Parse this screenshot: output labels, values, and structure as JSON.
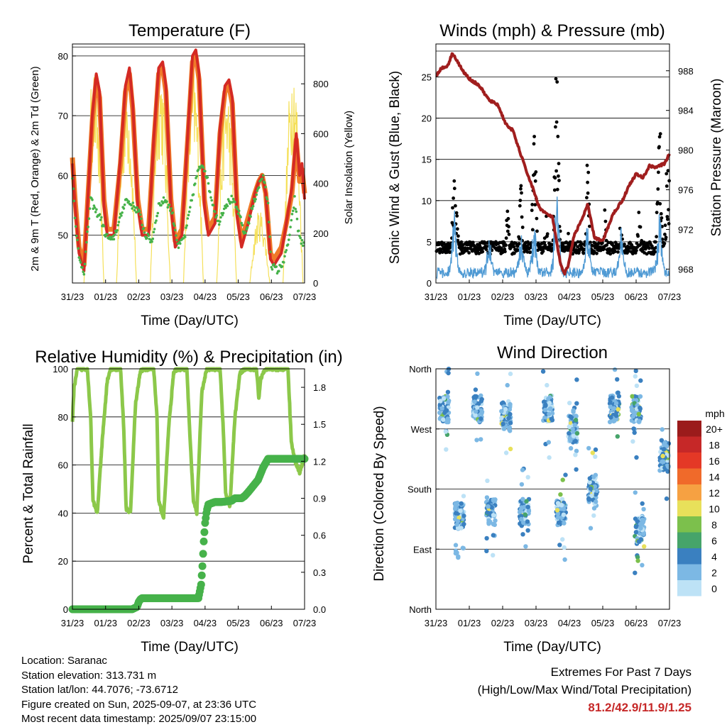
{
  "panels": {
    "temperature": {
      "title": "Temperature (F)",
      "ylabel_left": "2m & 9m T (Red, Orange) & 2m Td (Green)",
      "ylabel_right": "Solar Insolation (Yellow)",
      "xlabel": "Time (Day/UTC)"
    },
    "winds": {
      "title": "Winds (mph) & Pressure (mb)",
      "ylabel_left": "Sonic Wind & Gust (Blue, Black)",
      "ylabel_right": "Station Pressure (Maroon)",
      "xlabel": "Time (Day/UTC)"
    },
    "humidity": {
      "title": "Relative Humidity (%) & Precipitation (in)",
      "ylabel_left": "Percent & Total Rainfall",
      "xlabel": "Time (Day/UTC)"
    },
    "direction": {
      "title": "Wind Direction",
      "ylabel_left": "Direction (Colored By Speed)",
      "xlabel": "Time (Day/UTC)",
      "legend_title": "mph"
    }
  },
  "info": {
    "location": "Location: Saranac",
    "elevation": "Station elevation: 313.731 m",
    "latlon": "Station lat/lon: 44.7076; -73.6712",
    "created": "Figure created on Sun, 2025-09-07, at 23:36 UTC",
    "recent": "Most recent data timestamp: 2025/09/07 23:15:00"
  },
  "extremes": {
    "line1": "Extremes For Past 7 Days",
    "line2": "(High/Low/Max Wind/Total Precipitation)",
    "values": "81.2/42.9/11.9/1.25"
  },
  "colors": {
    "temp_2m": "#d42a24",
    "temp_9m": "#f07a28",
    "dewpoint": "#46b24a",
    "solar": "#f5e05a",
    "wind": "#4f9ad4",
    "gust": "#000000",
    "pressure": "#a01e1e",
    "rh": "#8cc84a",
    "precip": "#46b24a"
  },
  "chart_data": [
    {
      "type": "line",
      "title": "Temperature (F)",
      "xlabel": "Time (Day/UTC)",
      "ylabel": "2m & 9m T (Red, Orange) & 2m Td (Green)",
      "y2label": "Solar Insolation (Yellow)",
      "x_ticks": [
        "31/23",
        "01/23",
        "02/23",
        "03/23",
        "04/23",
        "05/23",
        "06/23",
        "07/23"
      ],
      "ylim": [
        42,
        82
      ],
      "y_ticks": [
        50,
        60,
        70,
        80
      ],
      "y2lim": [
        0,
        960
      ],
      "y2_ticks": [
        0,
        200,
        400,
        600,
        800
      ],
      "grid": true,
      "series": [
        {
          "name": "2m T",
          "axis": "left",
          "x": [
            0,
            0.08,
            0.2,
            0.35,
            0.6,
            0.72,
            0.82,
            0.95,
            1.05,
            1.25,
            1.45,
            1.6,
            1.72,
            1.82,
            1.97,
            2.1,
            2.3,
            2.45,
            2.6,
            2.72,
            2.82,
            2.97,
            3.1,
            3.3,
            3.5,
            3.62,
            3.72,
            3.82,
            3.98,
            4.1,
            4.3,
            4.45,
            4.6,
            4.72,
            4.82,
            4.97,
            5.1,
            5.3,
            5.5,
            5.62,
            5.72,
            5.83,
            5.97,
            6.08,
            6.3,
            6.45,
            6.62,
            6.75,
            6.85,
            6.92,
            7.0
          ],
          "y": [
            62,
            55,
            47,
            44,
            70,
            77,
            74,
            55,
            50,
            50,
            63,
            75,
            78,
            72,
            55,
            50,
            50,
            66,
            78,
            79,
            75,
            55,
            48,
            50,
            69,
            80,
            81,
            77,
            55,
            50,
            52,
            68,
            75,
            76,
            73,
            53,
            48,
            52,
            57,
            59,
            60,
            57,
            46,
            45,
            47,
            52,
            58,
            67,
            60,
            62,
            56
          ]
        },
        {
          "name": "9m T",
          "axis": "left",
          "x": [
            0,
            0.08,
            0.2,
            0.35,
            0.6,
            0.72,
            0.82,
            0.95,
            1.05,
            1.25,
            1.45,
            1.6,
            1.72,
            1.82,
            1.97,
            2.1,
            2.3,
            2.45,
            2.6,
            2.72,
            2.82,
            2.97,
            3.1,
            3.3,
            3.5,
            3.62,
            3.72,
            3.82,
            3.98,
            4.1,
            4.3,
            4.45,
            4.6,
            4.72,
            4.82,
            4.97,
            5.1,
            5.3,
            5.5,
            5.62,
            5.72,
            5.83,
            5.97,
            6.08,
            6.3,
            6.45,
            6.62,
            6.75,
            6.85,
            6.92,
            7.0
          ],
          "y": [
            63,
            56,
            48,
            45,
            69,
            76,
            73,
            56,
            51,
            51,
            62,
            74,
            77,
            71,
            56,
            51,
            51,
            65,
            77,
            78,
            74,
            56,
            49,
            51,
            68,
            79,
            80,
            76,
            56,
            51,
            53,
            67,
            74,
            75,
            72,
            54,
            49,
            53,
            57,
            59,
            60,
            57,
            47,
            46,
            48,
            52,
            57,
            66,
            59,
            61,
            57
          ]
        },
        {
          "name": "2m Td",
          "axis": "left",
          "x": [
            0,
            0.08,
            0.2,
            0.35,
            0.55,
            0.7,
            0.85,
            1.0,
            1.2,
            1.4,
            1.6,
            1.8,
            2.0,
            2.2,
            2.4,
            2.6,
            2.8,
            3.0,
            3.2,
            3.4,
            3.6,
            3.75,
            3.9,
            4.0,
            4.2,
            4.4,
            4.6,
            4.8,
            5.0,
            5.2,
            5.4,
            5.6,
            5.75,
            5.9,
            6.0,
            6.2,
            6.4,
            6.55,
            6.7,
            6.8,
            6.9,
            7.0
          ],
          "y": [
            60,
            53,
            46,
            44,
            56,
            54,
            53,
            50,
            49,
            52,
            56,
            55,
            54,
            50,
            49,
            55,
            56,
            54,
            48,
            50,
            56,
            60,
            62,
            61,
            56,
            52,
            55,
            56,
            54,
            50,
            54,
            58,
            60,
            55,
            45,
            44,
            46,
            50,
            56,
            51,
            49,
            48
          ]
        },
        {
          "name": "Solar Insolation",
          "axis": "right",
          "type": "area",
          "peaks_x": [
            0.65,
            1.63,
            2.65,
            3.65,
            4.65,
            5.65,
            6.65
          ],
          "peaks_y": [
            880,
            830,
            900,
            880,
            820,
            300,
            920
          ]
        }
      ]
    },
    {
      "type": "scatter",
      "title": "Winds (mph) & Pressure (mb)",
      "xlabel": "Time (Day/UTC)",
      "ylabel": "Sonic Wind & Gust (Blue, Black)",
      "y2label": "Station Pressure (Maroon)",
      "x_ticks": [
        "31/23",
        "01/23",
        "02/23",
        "03/23",
        "04/23",
        "05/23",
        "06/23",
        "07/23"
      ],
      "ylim": [
        0,
        29
      ],
      "y_ticks": [
        0,
        5,
        10,
        15,
        20,
        25
      ],
      "y2lim": [
        966.6,
        990.7
      ],
      "y2_ticks": [
        968,
        972,
        976,
        980,
        984,
        988
      ],
      "grid": true,
      "series": [
        {
          "name": "Gust",
          "color": "#000000",
          "note": "black points",
          "burst_x": [
            0.55,
            0.62,
            1.6,
            2.15,
            2.55,
            2.95,
            3.3,
            3.62,
            4.0,
            4.55,
            5.05,
            5.55,
            6.1,
            6.7,
            6.95
          ],
          "burst_y": [
            13,
            9,
            6,
            9,
            12,
            18,
            9,
            27,
            7,
            16,
            9,
            8,
            9,
            20,
            17
          ]
        },
        {
          "name": "Sonic Wind",
          "color": "#4f9ad4",
          "burst_x": [
            0.55,
            1.6,
            2.55,
            2.95,
            3.62,
            4.55,
            5.55,
            6.7
          ],
          "burst_y": [
            8,
            4,
            5,
            6,
            12,
            6,
            5,
            7
          ]
        },
        {
          "name": "Station Pressure",
          "axis": "right",
          "color": "#a01e1e",
          "x": [
            0,
            0.15,
            0.35,
            0.5,
            0.8,
            1.0,
            1.3,
            1.6,
            1.85,
            2.1,
            2.3,
            2.5,
            2.7,
            2.9,
            3.1,
            3.3,
            3.5,
            3.62,
            3.75,
            3.85,
            3.95,
            4.15,
            4.35,
            4.55,
            4.75,
            5.0,
            5.3,
            5.6,
            5.8,
            6.0,
            6.2,
            6.4,
            6.6,
            6.85,
            7.0
          ],
          "y": [
            987.5,
            988.2,
            988.5,
            989.8,
            988.0,
            987.2,
            986.5,
            985.0,
            984.6,
            982.6,
            982.0,
            980.0,
            978.0,
            976.2,
            974.2,
            973.6,
            973.2,
            970.6,
            968.3,
            967.5,
            968.2,
            971.5,
            972.8,
            974.5,
            971.2,
            970.8,
            973.5,
            975.0,
            976.5,
            977.6,
            977.2,
            978.4,
            978.3,
            978.6,
            979.7
          ]
        }
      ]
    },
    {
      "type": "line",
      "title": "Relative Humidity (%) & Precipitation (in)",
      "xlabel": "Time (Day/UTC)",
      "ylabel": "Percent & Total Rainfall",
      "x_ticks": [
        "31/23",
        "01/23",
        "02/23",
        "03/23",
        "04/23",
        "05/23",
        "06/23",
        "07/23"
      ],
      "ylim": [
        0,
        100
      ],
      "y_ticks": [
        0,
        20,
        40,
        60,
        80,
        100
      ],
      "y2lim": [
        0,
        1.95
      ],
      "y2_ticks": [
        0.0,
        0.3,
        0.6,
        0.9,
        1.2,
        1.5,
        1.8
      ],
      "grid": true,
      "series": [
        {
          "name": "Relative Humidity",
          "x": [
            0,
            0.05,
            0.15,
            0.25,
            0.45,
            0.55,
            0.62,
            0.75,
            0.9,
            1.05,
            1.15,
            1.45,
            1.55,
            1.62,
            1.75,
            1.9,
            2.05,
            2.15,
            2.45,
            2.55,
            2.6,
            2.75,
            2.9,
            3.05,
            3.15,
            3.45,
            3.55,
            3.65,
            3.75,
            3.9,
            4.05,
            4.2,
            4.45,
            4.55,
            4.62,
            4.75,
            4.9,
            5.05,
            5.2,
            5.55,
            5.62,
            5.68,
            5.8,
            6.0,
            6.3,
            6.5,
            6.6,
            6.7,
            6.85,
            7.0
          ],
          "y": [
            78,
            92,
            100,
            100,
            100,
            80,
            45,
            40,
            70,
            95,
            100,
            100,
            75,
            42,
            40,
            85,
            99,
            100,
            100,
            80,
            45,
            38,
            75,
            98,
            100,
            100,
            70,
            45,
            40,
            90,
            100,
            100,
            100,
            75,
            48,
            43,
            80,
            98,
            100,
            100,
            88,
            96,
            100,
            100,
            100,
            100,
            70,
            62,
            57,
            64
          ]
        },
        {
          "name": "Precipitation",
          "axis": "right",
          "unit": "in",
          "x": [
            0,
            1.8,
            1.95,
            2.0,
            2.05,
            2.1,
            2.2,
            3.0,
            3.8,
            3.88,
            3.92,
            3.96,
            4.0,
            4.05,
            4.1,
            4.3,
            4.5,
            4.8,
            4.9,
            5.0,
            5.1,
            5.2,
            5.3,
            5.45,
            5.6,
            5.75,
            5.9,
            6.0,
            6.5,
            7.0
          ],
          "y": [
            0.0,
            0.0,
            0.02,
            0.06,
            0.08,
            0.09,
            0.09,
            0.09,
            0.09,
            0.2,
            0.35,
            0.55,
            0.7,
            0.8,
            0.85,
            0.87,
            0.87,
            0.88,
            0.9,
            0.9,
            0.9,
            0.92,
            0.95,
            1.0,
            1.05,
            1.15,
            1.22,
            1.22,
            1.22,
            1.22
          ]
        }
      ]
    },
    {
      "type": "scatter",
      "title": "Wind Direction",
      "xlabel": "Time (Day/UTC)",
      "ylabel": "Direction (Colored By Speed)",
      "x_ticks": [
        "31/23",
        "01/23",
        "02/23",
        "03/23",
        "04/23",
        "05/23",
        "06/23",
        "07/23"
      ],
      "y_ticks": [
        "North",
        "East",
        "South",
        "West",
        "North"
      ],
      "y_tick_values": [
        0,
        90,
        180,
        270,
        360
      ],
      "legend": {
        "title": "mph",
        "placement": "right",
        "labels": [
          "20+",
          "18",
          "16",
          "14",
          "12",
          "10",
          "8",
          "6",
          "4",
          "2",
          "0"
        ],
        "colors": [
          "#9b1b1b",
          "#c62828",
          "#e43826",
          "#f06a2a",
          "#f6a142",
          "#e8e05a",
          "#7cc04c",
          "#46a46a",
          "#3a80c0",
          "#7cb8e4",
          "#bde2f6"
        ]
      },
      "clusters": [
        {
          "x": 0.25,
          "dir": 300
        },
        {
          "x": 0.7,
          "dir": 140
        },
        {
          "x": 1.25,
          "dir": 300
        },
        {
          "x": 1.65,
          "dir": 145
        },
        {
          "x": 2.1,
          "dir": 290
        },
        {
          "x": 2.65,
          "dir": 145
        },
        {
          "x": 3.35,
          "dir": 300
        },
        {
          "x": 3.75,
          "dir": 145
        },
        {
          "x": 4.1,
          "dir": 270
        },
        {
          "x": 4.7,
          "dir": 180
        },
        {
          "x": 5.35,
          "dir": 300
        },
        {
          "x": 6.0,
          "dir": 300
        },
        {
          "x": 6.1,
          "dir": 120
        },
        {
          "x": 6.85,
          "dir": 230
        }
      ]
    }
  ]
}
